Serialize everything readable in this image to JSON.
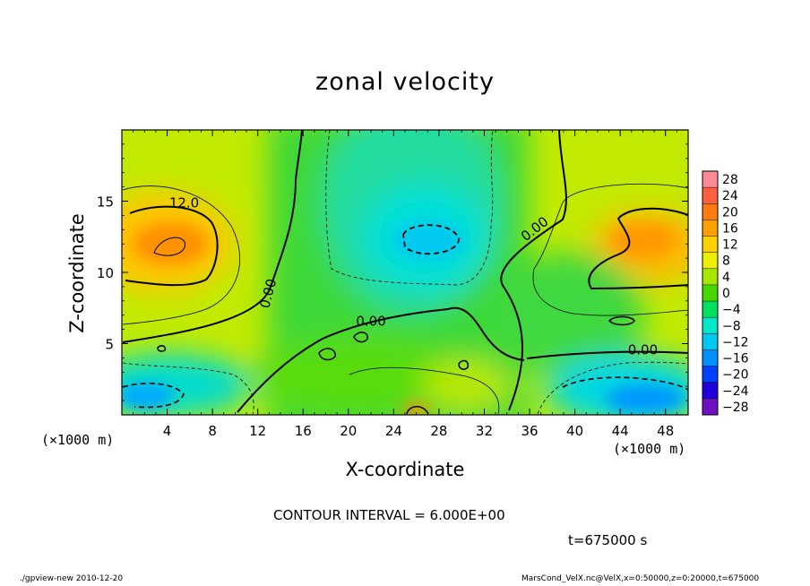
{
  "chart_data": {
    "type": "heatmap",
    "title": "zonal velocity",
    "xlabel": "X-coordinate",
    "ylabel": "Z-coordinate",
    "x_scale_label": "(×1000 m)",
    "y_scale_label": "(×1000 m)",
    "xlim": [
      0,
      50
    ],
    "ylim": [
      0,
      20
    ],
    "x_ticks": [
      4,
      8,
      12,
      16,
      20,
      24,
      28,
      32,
      36,
      40,
      44,
      48
    ],
    "y_ticks": [
      5,
      10,
      15
    ],
    "colorbar": {
      "levels": [
        28,
        24,
        20,
        16,
        12,
        8,
        4,
        0,
        -4,
        -8,
        -12,
        -16,
        -20,
        -24,
        -28
      ],
      "colors": [
        "#ff8a95",
        "#ff6040",
        "#ff7a10",
        "#ffa000",
        "#ffd000",
        "#ecf000",
        "#a8e800",
        "#48d800",
        "#00e060",
        "#00e8c8",
        "#00c8f0",
        "#0090ff",
        "#0040ff",
        "#2000d8",
        "#7010c0"
      ]
    },
    "contour_labels": [
      {
        "text": "12.0",
        "x": 5.5,
        "z": 14.8
      },
      {
        "text": "0.00",
        "x": 13.0,
        "z": 8.5
      },
      {
        "text": "0.00",
        "x": 22.0,
        "z": 6.5
      },
      {
        "text": "0.00",
        "x": 36.5,
        "z": 13.0
      },
      {
        "text": "0.00",
        "x": 46.0,
        "z": 4.5
      }
    ],
    "contour_interval": "CONTOUR INTERVAL = 6.000E+00",
    "time": "t=675000 s"
  },
  "footer": {
    "left": "./gpview-new  2010-12-20",
    "right": "MarsCond_VelX.nc@VelX,x=0:50000,z=0:20000,t=675000"
  }
}
